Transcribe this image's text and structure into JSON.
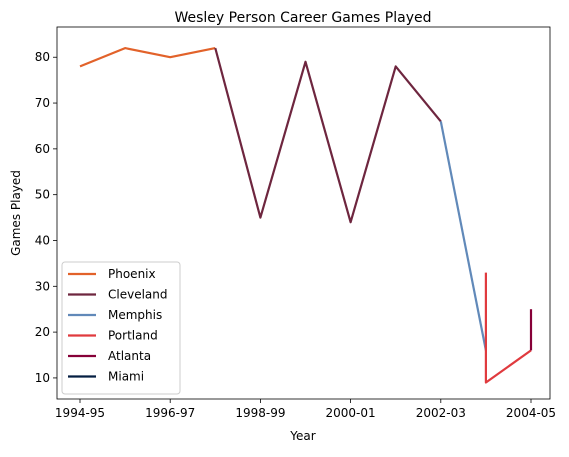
{
  "chart_data": {
    "type": "line",
    "title": "Wesley Person Career Games Played",
    "xlabel": "Year",
    "ylabel": "Games Played",
    "x_ticks": [
      "1994-95",
      "1996-97",
      "1998-99",
      "2000-01",
      "2002-03",
      "2004-05"
    ],
    "y_ticks": [
      10,
      20,
      30,
      40,
      50,
      60,
      70,
      80
    ],
    "xlim": [
      "1994-95",
      "2004-05"
    ],
    "ylim": [
      5.4,
      86.6
    ],
    "grid": false,
    "legend_position": "lower-left",
    "series": [
      {
        "name": "Phoenix",
        "color": "#e2622a",
        "points": [
          [
            "1994-95",
            78
          ],
          [
            "1995-96",
            82
          ],
          [
            "1996-97",
            80
          ],
          [
            "1997-98",
            82
          ]
        ]
      },
      {
        "name": "Cleveland",
        "color": "#6e263f",
        "points": [
          [
            "1997-98",
            82
          ],
          [
            "1998-99",
            45
          ],
          [
            "1999-00",
            79
          ],
          [
            "2000-01",
            44
          ],
          [
            "2001-02",
            78
          ],
          [
            "2002-03",
            66
          ]
        ]
      },
      {
        "name": "Memphis",
        "color": "#6189b9",
        "points": [
          [
            "2002-03",
            66
          ],
          [
            "2003-04",
            16
          ]
        ]
      },
      {
        "name": "Portland",
        "color": "#e03a3e",
        "points": [
          [
            "2003-04",
            33
          ],
          [
            "2003-04",
            9
          ],
          [
            "2004-05",
            16
          ]
        ]
      },
      {
        "name": "Atlanta",
        "color": "#860038",
        "points": [
          [
            "2004-05",
            25
          ],
          [
            "2004-05",
            16
          ]
        ]
      },
      {
        "name": "Miami",
        "color": "#041e42",
        "points": []
      }
    ]
  }
}
